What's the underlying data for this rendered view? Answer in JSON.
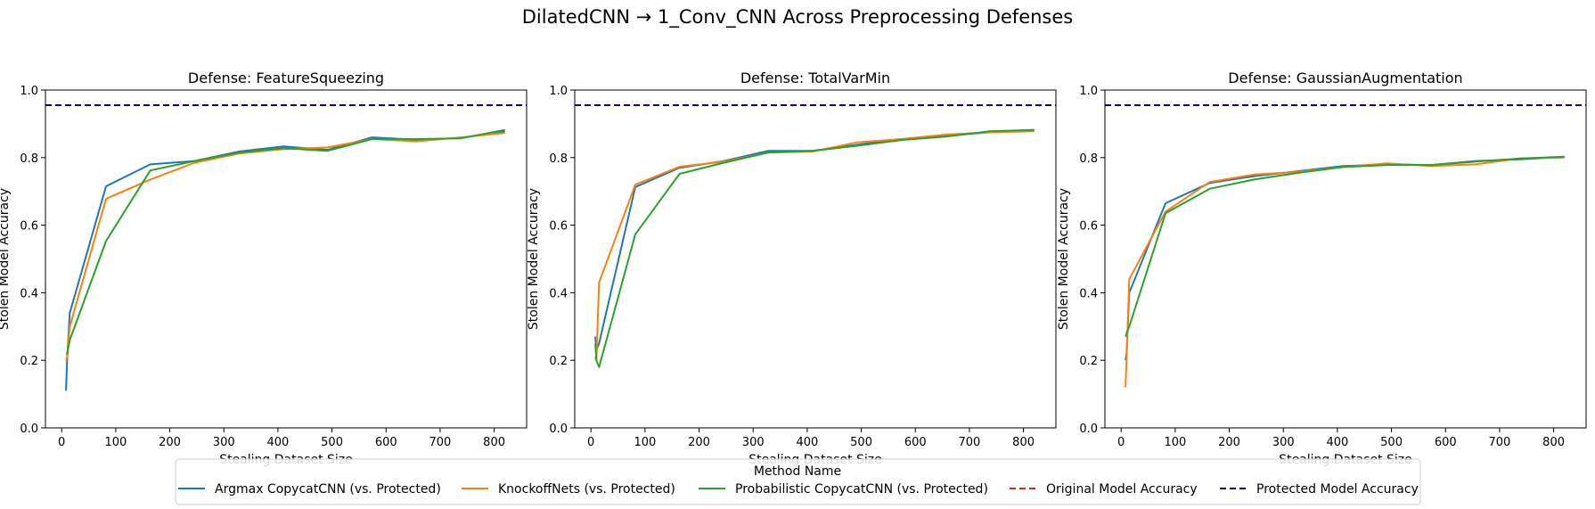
{
  "suptitle": "DilatedCNN → 1_Conv_CNN Across Preprocessing Defenses",
  "legend": {
    "title": "Method Name",
    "entries": [
      {
        "label": "Argmax CopycatCNN (vs. Protected)",
        "color": "#1f77b4",
        "dash": "solid"
      },
      {
        "label": "KnockoffNets (vs. Protected)",
        "color": "#ff7f0e",
        "dash": "solid"
      },
      {
        "label": "Probabilistic CopycatCNN (vs. Protected)",
        "color": "#2ca02c",
        "dash": "solid"
      },
      {
        "label": "Original Model Accuracy",
        "color": "#d62728",
        "dash": "dashed"
      },
      {
        "label": "Protected Model Accuracy",
        "color": "#00008b",
        "dash": "dashed"
      }
    ]
  },
  "chart_data": [
    {
      "type": "line",
      "title": "Defense: FeatureSqueezing",
      "xlabel": "Stealing Dataset Size",
      "ylabel": "Stolen Model Accuracy",
      "xlim": [
        -30,
        860
      ],
      "ylim": [
        0.0,
        1.0
      ],
      "xticks": [
        0,
        100,
        200,
        300,
        400,
        500,
        600,
        700,
        800
      ],
      "yticks": [
        0.0,
        0.2,
        0.4,
        0.6,
        0.8,
        1.0
      ],
      "hlines": [
        {
          "name": "Protected Model Accuracy",
          "y": 0.955
        }
      ],
      "series": [
        {
          "name": "Argmax CopycatCNN (vs. Protected)",
          "x": [
            8,
            10,
            15,
            82,
            164,
            246,
            328,
            410,
            492,
            574,
            656,
            738,
            820
          ],
          "y": [
            0.11,
            0.2,
            0.34,
            0.715,
            0.78,
            0.79,
            0.818,
            0.833,
            0.823,
            0.86,
            0.853,
            0.858,
            0.878
          ]
        },
        {
          "name": "KnockoffNets (vs. Protected)",
          "x": [
            8,
            10,
            15,
            82,
            164,
            246,
            328,
            410,
            492,
            574,
            656,
            738,
            820
          ],
          "y": [
            0.2,
            0.21,
            0.3,
            0.678,
            0.735,
            0.785,
            0.812,
            0.825,
            0.83,
            0.855,
            0.848,
            0.86,
            0.873
          ]
        },
        {
          "name": "Probabilistic CopycatCNN (vs. Protected)",
          "x": [
            8,
            10,
            15,
            82,
            164,
            246,
            328,
            410,
            492,
            574,
            656,
            738,
            820
          ],
          "y": [
            0.22,
            0.22,
            0.26,
            0.553,
            0.762,
            0.79,
            0.815,
            0.828,
            0.82,
            0.855,
            0.855,
            0.857,
            0.882
          ]
        }
      ]
    },
    {
      "type": "line",
      "title": "Defense: TotalVarMin",
      "xlabel": "Stealing Dataset Size",
      "ylabel": "Stolen Model Accuracy",
      "xlim": [
        -30,
        860
      ],
      "ylim": [
        0.0,
        1.0
      ],
      "xticks": [
        0,
        100,
        200,
        300,
        400,
        500,
        600,
        700,
        800
      ],
      "yticks": [
        0.0,
        0.2,
        0.4,
        0.6,
        0.8,
        1.0
      ],
      "hlines": [
        {
          "name": "Protected Model Accuracy",
          "y": 0.955
        }
      ],
      "series": [
        {
          "name": "Argmax CopycatCNN (vs. Protected)",
          "x": [
            8,
            10,
            15,
            82,
            164,
            246,
            328,
            410,
            492,
            574,
            656,
            738,
            820
          ],
          "y": [
            0.27,
            0.23,
            0.25,
            0.713,
            0.77,
            0.79,
            0.82,
            0.82,
            0.838,
            0.855,
            0.865,
            0.875,
            0.882
          ]
        },
        {
          "name": "KnockoffNets (vs. Protected)",
          "x": [
            8,
            10,
            15,
            82,
            164,
            246,
            328,
            410,
            492,
            574,
            656,
            738,
            820
          ],
          "y": [
            0.21,
            0.2,
            0.43,
            0.72,
            0.773,
            0.788,
            0.815,
            0.818,
            0.845,
            0.855,
            0.868,
            0.875,
            0.878
          ]
        },
        {
          "name": "Probabilistic CopycatCNN (vs. Protected)",
          "x": [
            8,
            10,
            15,
            82,
            164,
            246,
            328,
            410,
            492,
            574,
            656,
            738,
            820
          ],
          "y": [
            0.25,
            0.2,
            0.18,
            0.573,
            0.752,
            0.785,
            0.815,
            0.82,
            0.835,
            0.852,
            0.862,
            0.878,
            0.882
          ]
        }
      ]
    },
    {
      "type": "line",
      "title": "Defense: GaussianAugmentation",
      "xlabel": "Stealing Dataset Size",
      "ylabel": "Stolen Model Accuracy",
      "xlim": [
        -30,
        860
      ],
      "ylim": [
        0.0,
        1.0
      ],
      "xticks": [
        0,
        100,
        200,
        300,
        400,
        500,
        600,
        700,
        800
      ],
      "yticks": [
        0.0,
        0.2,
        0.4,
        0.6,
        0.8,
        1.0
      ],
      "hlines": [
        {
          "name": "Protected Model Accuracy",
          "y": 0.955
        }
      ],
      "series": [
        {
          "name": "Argmax CopycatCNN (vs. Protected)",
          "x": [
            8,
            10,
            15,
            82,
            164,
            246,
            328,
            410,
            492,
            574,
            656,
            738,
            820
          ],
          "y": [
            0.2,
            0.22,
            0.4,
            0.665,
            0.725,
            0.745,
            0.76,
            0.775,
            0.78,
            0.778,
            0.79,
            0.795,
            0.802
          ]
        },
        {
          "name": "KnockoffNets (vs. Protected)",
          "x": [
            8,
            10,
            15,
            82,
            164,
            246,
            328,
            410,
            492,
            574,
            656,
            738,
            820
          ],
          "y": [
            0.12,
            0.2,
            0.44,
            0.64,
            0.728,
            0.75,
            0.758,
            0.772,
            0.783,
            0.775,
            0.78,
            0.798,
            0.8
          ]
        },
        {
          "name": "Probabilistic CopycatCNN (vs. Protected)",
          "x": [
            8,
            10,
            15,
            82,
            164,
            246,
            328,
            410,
            492,
            574,
            656,
            738,
            820
          ],
          "y": [
            0.27,
            0.28,
            0.3,
            0.635,
            0.708,
            0.735,
            0.755,
            0.772,
            0.778,
            0.778,
            0.788,
            0.797,
            0.803
          ]
        }
      ]
    }
  ]
}
